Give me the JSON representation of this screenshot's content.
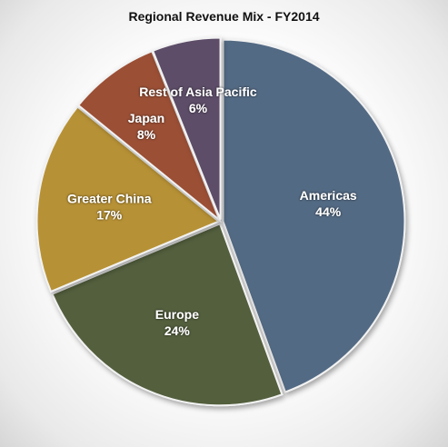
{
  "chart_data": {
    "type": "pie",
    "title": "Regional Revenue Mix - FY2014",
    "start_angle_deg": 0,
    "direction": "clockwise",
    "slices": [
      {
        "name": "Americas",
        "value": 44,
        "label": "44%",
        "color": "#526a84"
      },
      {
        "name": "Europe",
        "value": 24,
        "label": "24%",
        "color": "#535f3e"
      },
      {
        "name": "Greater China",
        "value": 17,
        "label": "17%",
        "color": "#b79134"
      },
      {
        "name": "Japan",
        "value": 8,
        "label": "8%",
        "color": "#9b4f36"
      },
      {
        "name": "Rest of Asia Pacific",
        "value": 6,
        "label": "6%",
        "color": "#5d4e68"
      }
    ]
  }
}
